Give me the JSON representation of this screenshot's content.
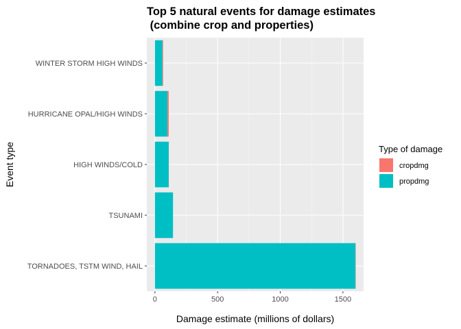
{
  "chart_data": {
    "type": "bar",
    "orientation": "horizontal",
    "stacked": true,
    "title": "Top 5 natural events for damage estimates",
    "subtitle": " (combine crop and properties)",
    "xlabel": "Damage estimate (millions of dollars)",
    "ylabel": "Event type",
    "xlim": [
      -65,
      1665
    ],
    "xticks": [
      0,
      500,
      1000,
      1500
    ],
    "categories": [
      "TORNADOES, TSTM WIND, HAIL",
      "TSUNAMI",
      "HIGH WINDS/COLD",
      "HURRICANE OPAL/HIGH WINDS",
      "WINTER STORM HIGH WINDS"
    ],
    "series": [
      {
        "name": "propdmg",
        "color": "#00BFC4",
        "values": [
          1600,
          144,
          110,
          100,
          60
        ]
      },
      {
        "name": "cropdmg",
        "color": "#F8766D",
        "values": [
          2.5,
          0.02,
          0.7,
          10,
          5
        ]
      }
    ],
    "legend": {
      "title": "Type of damage",
      "position": "right",
      "entries": [
        "cropdmg",
        "propdmg"
      ]
    },
    "grid": true,
    "panel_background": "#EBEBEB"
  }
}
